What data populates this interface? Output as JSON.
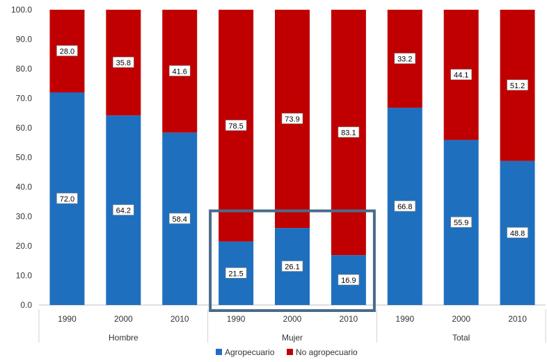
{
  "chart_data": {
    "type": "bar",
    "stacked": true,
    "categories": [
      "1990",
      "2000",
      "2010",
      "1990",
      "2000",
      "2010",
      "1990",
      "2000",
      "2010"
    ],
    "groups": [
      {
        "label": "Hombre",
        "categories": [
          "1990",
          "2000",
          "2010"
        ]
      },
      {
        "label": "Mujer",
        "categories": [
          "1990",
          "2000",
          "2010"
        ]
      },
      {
        "label": "Total",
        "categories": [
          "1990",
          "2000",
          "2010"
        ]
      }
    ],
    "series": [
      {
        "name": "Agropecuario",
        "color": "#1f6fbf",
        "values": [
          72.0,
          64.2,
          58.4,
          21.5,
          26.1,
          16.9,
          66.8,
          55.9,
          48.8
        ]
      },
      {
        "name": "No agropecuario",
        "color": "#c00000",
        "values": [
          28.0,
          35.8,
          41.6,
          78.5,
          73.9,
          83.1,
          33.2,
          44.1,
          51.2
        ]
      }
    ],
    "data_labels": {
      "Agropecuario": [
        "72.0",
        "64.2",
        "58.4",
        "21.5",
        "26.1",
        "16.9",
        "66.8",
        "55.9",
        "48.8"
      ],
      "No agropecuario": [
        "28.0",
        "35.8",
        "41.6",
        "78.5",
        "73.9",
        "83.1",
        "33.2",
        "44.1",
        "51.2"
      ]
    },
    "yticks": [
      "0.0",
      "10.0",
      "20.0",
      "30.0",
      "40.0",
      "50.0",
      "60.0",
      "70.0",
      "80.0",
      "90.0",
      "100.0"
    ],
    "ylim": [
      0,
      100
    ],
    "grid": false,
    "legend_position": "bottom",
    "highlight": {
      "group": "Mujer",
      "color": "#4a6b8a"
    }
  }
}
